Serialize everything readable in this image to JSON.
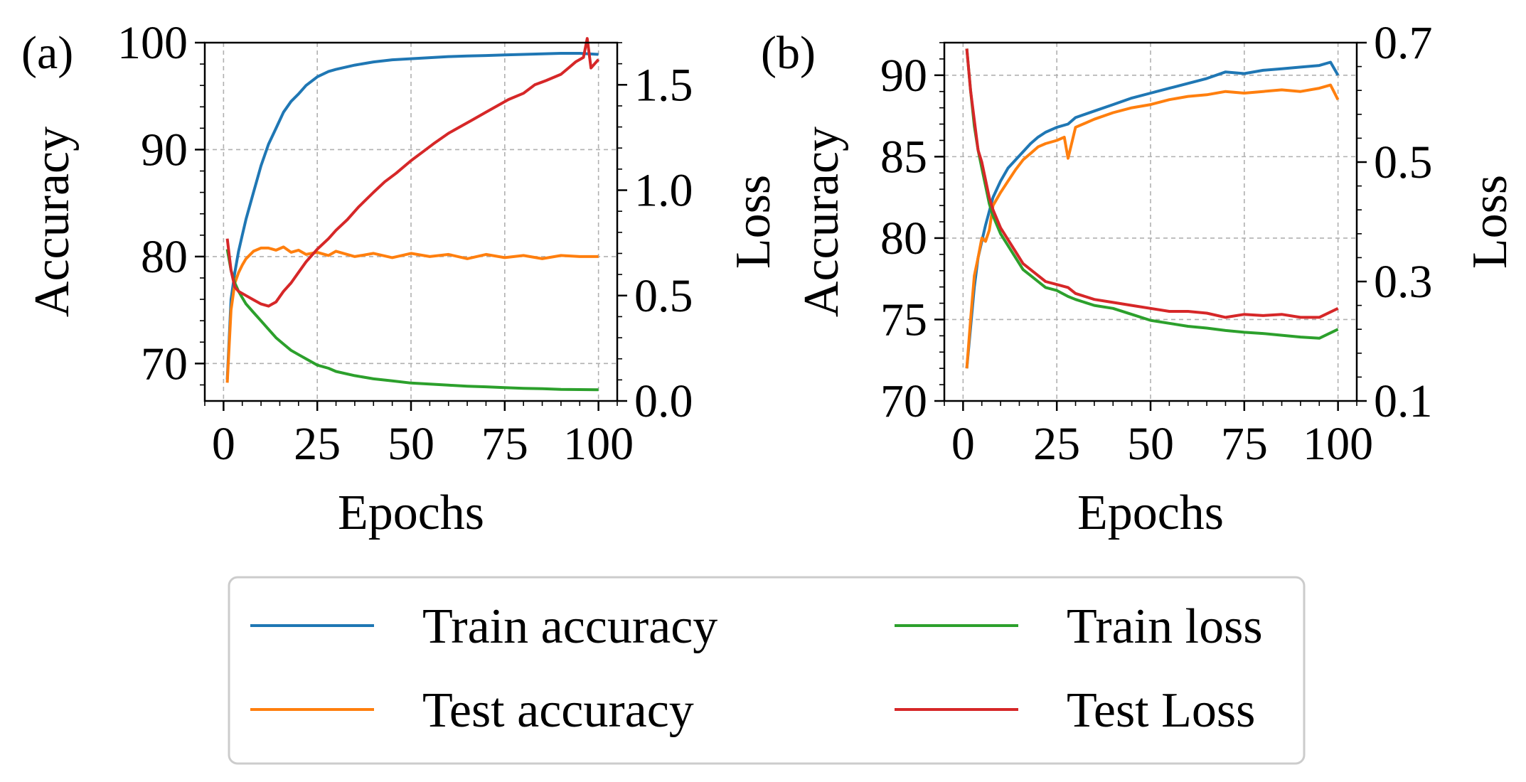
{
  "colors": {
    "train_accuracy": "#1f77b4",
    "test_accuracy": "#ff7f0e",
    "train_loss": "#2ca02c",
    "test_loss": "#d62728",
    "grid": "#b0b0b0",
    "legend_border": "#cccccc"
  },
  "legend": {
    "items": [
      "Train accuracy",
      "Train loss",
      "Test accuracy",
      "Test Loss"
    ]
  },
  "chart_data": [
    {
      "type": "line",
      "panel_label": "(a)",
      "xlabel": "Epochs",
      "ylabel": "Accuracy",
      "y2label": "Loss",
      "xlim": [
        -5,
        105
      ],
      "ylim": [
        66.5,
        100
      ],
      "y2lim": [
        0,
        1.7
      ],
      "xticks": [
        0,
        25,
        50,
        75,
        100
      ],
      "xtick_labels": [
        "0",
        "25",
        "50",
        "75",
        "100"
      ],
      "yticks": [
        70,
        80,
        90,
        100
      ],
      "ytick_labels": [
        "70",
        "80",
        "90",
        "100"
      ],
      "y2ticks": [
        0,
        0.5,
        1.0,
        1.5
      ],
      "y2tick_labels": [
        "0.0",
        "0.5",
        "1.0",
        "1.5"
      ],
      "grid": true,
      "series": [
        {
          "name": "Train accuracy",
          "axis": "left",
          "color": "#1f77b4",
          "x": [
            1,
            2,
            3,
            4,
            5,
            6,
            8,
            10,
            12,
            14,
            16,
            18,
            20,
            22,
            25,
            28,
            30,
            35,
            40,
            45,
            50,
            55,
            60,
            65,
            70,
            75,
            80,
            85,
            90,
            95,
            100
          ],
          "values": [
            68.5,
            76,
            78.5,
            80.5,
            82,
            83.5,
            86,
            88.5,
            90.5,
            92,
            93.5,
            94.5,
            95.2,
            96,
            96.8,
            97.3,
            97.5,
            97.9,
            98.2,
            98.4,
            98.5,
            98.6,
            98.7,
            98.75,
            98.8,
            98.85,
            98.9,
            98.95,
            99,
            99,
            98.9
          ]
        },
        {
          "name": "Test accuracy",
          "axis": "left",
          "color": "#ff7f0e",
          "x": [
            1,
            2,
            3,
            4,
            5,
            6,
            8,
            10,
            12,
            14,
            16,
            18,
            20,
            22,
            25,
            28,
            30,
            35,
            40,
            45,
            50,
            55,
            60,
            65,
            70,
            75,
            80,
            85,
            90,
            95,
            100
          ],
          "values": [
            68.2,
            75,
            77.5,
            78.5,
            79.2,
            79.8,
            80.5,
            80.8,
            80.8,
            80.6,
            80.9,
            80.4,
            80.6,
            80.2,
            80.4,
            80.1,
            80.5,
            80.0,
            80.3,
            79.9,
            80.3,
            80.0,
            80.2,
            79.8,
            80.2,
            79.9,
            80.1,
            79.8,
            80.1,
            80.0,
            80.0
          ]
        },
        {
          "name": "Train loss",
          "axis": "right",
          "color": "#2ca02c",
          "x": [
            1,
            2,
            3,
            4,
            5,
            6,
            8,
            10,
            12,
            14,
            16,
            18,
            20,
            22,
            25,
            28,
            30,
            35,
            40,
            45,
            50,
            55,
            60,
            65,
            70,
            75,
            80,
            85,
            90,
            95,
            100
          ],
          "values": [
            0.72,
            0.62,
            0.56,
            0.52,
            0.49,
            0.46,
            0.42,
            0.38,
            0.34,
            0.3,
            0.27,
            0.24,
            0.22,
            0.2,
            0.17,
            0.155,
            0.14,
            0.12,
            0.105,
            0.095,
            0.085,
            0.08,
            0.075,
            0.07,
            0.067,
            0.063,
            0.06,
            0.058,
            0.055,
            0.054,
            0.053
          ]
        },
        {
          "name": "Test Loss",
          "axis": "right",
          "color": "#d62728",
          "x": [
            1,
            2,
            3,
            4,
            6,
            8,
            10,
            12,
            14,
            16,
            18,
            20,
            22,
            25,
            28,
            30,
            33,
            36,
            40,
            43,
            46,
            50,
            53,
            56,
            60,
            63,
            66,
            70,
            73,
            76,
            80,
            83,
            86,
            90,
            92,
            94,
            96,
            97,
            98,
            100
          ],
          "values": [
            0.77,
            0.62,
            0.54,
            0.52,
            0.5,
            0.48,
            0.46,
            0.45,
            0.47,
            0.52,
            0.56,
            0.61,
            0.66,
            0.72,
            0.77,
            0.81,
            0.86,
            0.92,
            0.99,
            1.04,
            1.08,
            1.14,
            1.18,
            1.22,
            1.27,
            1.3,
            1.33,
            1.37,
            1.4,
            1.43,
            1.46,
            1.5,
            1.52,
            1.55,
            1.58,
            1.61,
            1.63,
            1.72,
            1.58,
            1.62
          ]
        }
      ]
    },
    {
      "type": "line",
      "panel_label": "(b)",
      "xlabel": "Epochs",
      "ylabel": "Accuracy",
      "y2label": "Loss",
      "xlim": [
        -5,
        105
      ],
      "ylim": [
        70,
        92
      ],
      "y2lim": [
        0.1,
        0.7
      ],
      "xticks": [
        0,
        25,
        50,
        75,
        100
      ],
      "xtick_labels": [
        "0",
        "25",
        "50",
        "75",
        "100"
      ],
      "yticks": [
        70,
        75,
        80,
        85,
        90
      ],
      "ytick_labels": [
        "70",
        "75",
        "80",
        "85",
        "90"
      ],
      "y2ticks": [
        0.1,
        0.3,
        0.5,
        0.7
      ],
      "y2tick_labels": [
        "0.1",
        "0.3",
        "0.5",
        "0.7"
      ],
      "grid": true,
      "series": [
        {
          "name": "Train accuracy",
          "axis": "left",
          "color": "#1f77b4",
          "x": [
            1,
            2,
            3,
            4,
            5,
            6,
            8,
            10,
            12,
            14,
            16,
            18,
            20,
            22,
            25,
            28,
            30,
            35,
            40,
            45,
            50,
            55,
            60,
            65,
            70,
            75,
            80,
            85,
            90,
            95,
            98,
            100
          ],
          "values": [
            72.0,
            74.5,
            77.0,
            78.8,
            79.8,
            80.8,
            82.5,
            83.5,
            84.3,
            84.8,
            85.3,
            85.8,
            86.2,
            86.5,
            86.8,
            87.0,
            87.4,
            87.8,
            88.2,
            88.6,
            88.9,
            89.2,
            89.5,
            89.8,
            90.2,
            90.1,
            90.3,
            90.4,
            90.5,
            90.6,
            90.8,
            90.0
          ]
        },
        {
          "name": "Test accuracy",
          "axis": "left",
          "color": "#ff7f0e",
          "x": [
            1,
            2,
            3,
            4,
            5,
            6,
            7,
            8,
            10,
            12,
            14,
            16,
            18,
            20,
            22,
            25,
            27,
            28,
            30,
            35,
            40,
            45,
            50,
            55,
            60,
            65,
            70,
            75,
            80,
            85,
            90,
            95,
            98,
            100
          ],
          "values": [
            72.0,
            75.0,
            77.7,
            78.8,
            80.0,
            79.8,
            80.5,
            82.0,
            82.8,
            83.5,
            84.2,
            84.8,
            85.2,
            85.6,
            85.8,
            86.0,
            86.2,
            84.9,
            86.8,
            87.3,
            87.7,
            88.0,
            88.2,
            88.5,
            88.7,
            88.8,
            89.0,
            88.9,
            89.0,
            89.1,
            89.0,
            89.2,
            89.4,
            88.5
          ]
        },
        {
          "name": "Train loss",
          "axis": "right",
          "color": "#2ca02c",
          "x": [
            1,
            2,
            3,
            4,
            5,
            6,
            7,
            8,
            10,
            12,
            14,
            16,
            18,
            20,
            22,
            25,
            28,
            30,
            35,
            40,
            45,
            50,
            55,
            60,
            65,
            70,
            75,
            80,
            85,
            90,
            95,
            100
          ],
          "values": [
            0.69,
            0.62,
            0.56,
            0.52,
            0.49,
            0.46,
            0.43,
            0.41,
            0.38,
            0.36,
            0.34,
            0.32,
            0.31,
            0.3,
            0.29,
            0.285,
            0.275,
            0.27,
            0.26,
            0.255,
            0.245,
            0.235,
            0.23,
            0.225,
            0.222,
            0.218,
            0.215,
            0.213,
            0.21,
            0.207,
            0.205,
            0.22
          ]
        },
        {
          "name": "Test Loss",
          "axis": "right",
          "color": "#d62728",
          "x": [
            1,
            2,
            3,
            4,
            5,
            6,
            7,
            8,
            10,
            12,
            14,
            16,
            18,
            20,
            22,
            25,
            28,
            30,
            35,
            40,
            45,
            50,
            55,
            60,
            65,
            70,
            75,
            80,
            85,
            90,
            95,
            100
          ],
          "values": [
            0.69,
            0.62,
            0.57,
            0.52,
            0.5,
            0.47,
            0.44,
            0.42,
            0.39,
            0.37,
            0.35,
            0.33,
            0.32,
            0.31,
            0.3,
            0.295,
            0.29,
            0.28,
            0.27,
            0.265,
            0.26,
            0.255,
            0.25,
            0.25,
            0.247,
            0.24,
            0.245,
            0.243,
            0.245,
            0.24,
            0.24,
            0.255
          ]
        }
      ]
    }
  ]
}
